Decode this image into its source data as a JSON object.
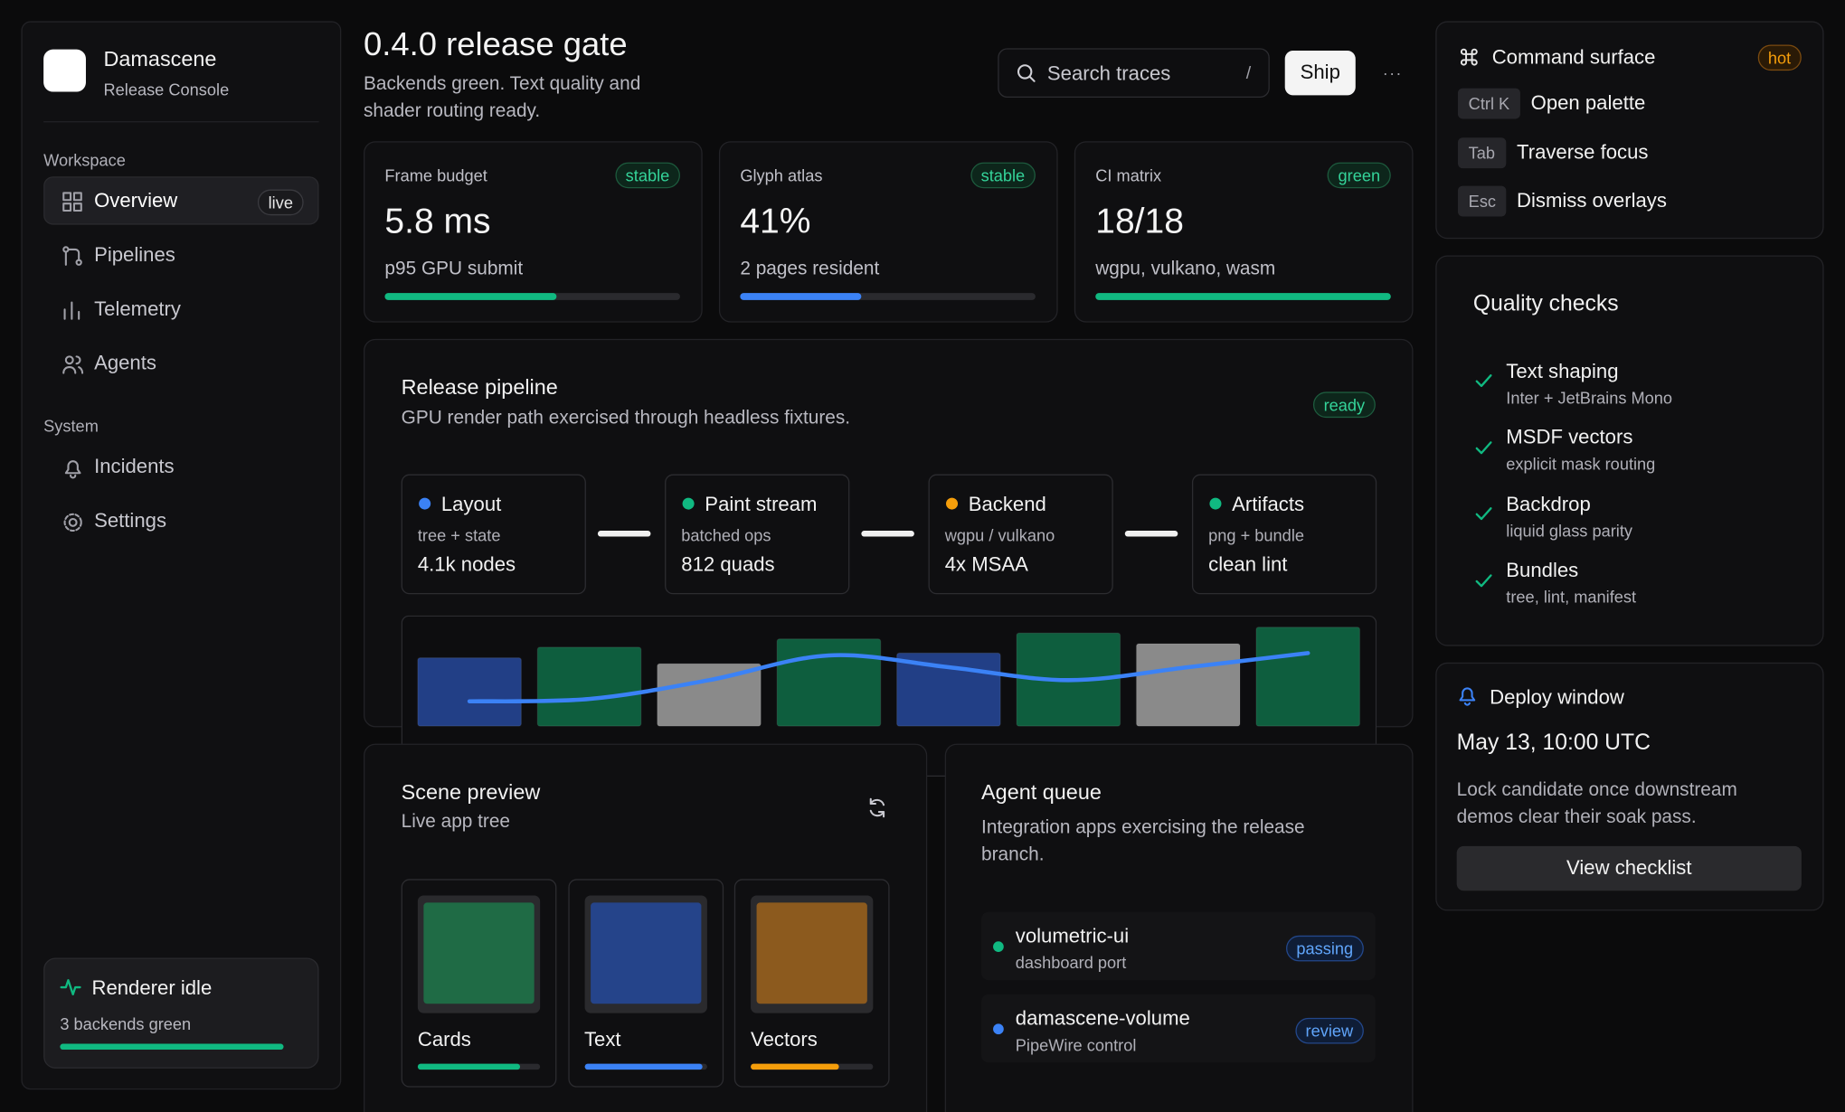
{
  "sidebar": {
    "brand": {
      "name": "Damascene",
      "subtitle": "Release Console"
    },
    "sections": [
      {
        "label": "Workspace",
        "items": [
          {
            "label": "Overview",
            "badge": "live"
          },
          {
            "label": "Pipelines"
          },
          {
            "label": "Telemetry"
          },
          {
            "label": "Agents"
          }
        ]
      },
      {
        "label": "System",
        "items": [
          {
            "label": "Incidents"
          },
          {
            "label": "Settings"
          }
        ]
      }
    ],
    "status": {
      "title": "Renderer idle",
      "subtitle": "3 backends green",
      "progress": 1
    }
  },
  "header": {
    "title": "0.4.0 release gate",
    "subtitle": "Backends green. Text quality and shader routing ready.",
    "search_placeholder": "Search traces",
    "search_shortcut": "/",
    "ship_button": "Ship",
    "more": "···"
  },
  "stats": [
    {
      "label": "Frame budget",
      "badge": "stable",
      "value": "5.8 ms",
      "detail": "p95 GPU submit",
      "progress": 0.58,
      "color": "#10b981"
    },
    {
      "label": "Glyph atlas",
      "badge": "stable",
      "value": "41%",
      "detail": "2 pages resident",
      "progress": 0.41,
      "color": "#3b82f6"
    },
    {
      "label": "CI matrix",
      "badge": "green",
      "value": "18/18",
      "detail": "wgpu, vulkano, wasm",
      "progress": 1,
      "color": "#10b981"
    }
  ],
  "pipeline": {
    "title": "Release pipeline",
    "subtitle": "GPU render path exercised through headless fixtures.",
    "badge": "ready",
    "stages": [
      {
        "name": "Layout",
        "detail": "tree + state",
        "metric": "4.1k nodes",
        "color": "#3b82f6"
      },
      {
        "name": "Paint stream",
        "detail": "batched ops",
        "metric": "812 quads",
        "color": "#10b981"
      },
      {
        "name": "Backend",
        "detail": "wgpu / vulkano",
        "metric": "4x MSAA",
        "color": "#f59e0b"
      },
      {
        "name": "Artifacts",
        "detail": "png + bundle",
        "metric": "clean lint",
        "color": "#10b981"
      }
    ],
    "chart": {
      "bars": [
        58,
        67,
        53,
        74,
        62,
        79,
        70,
        84
      ],
      "bar_colors": [
        "#223f86",
        "#0e5e3e",
        "#8a8a8a",
        "#0e5e3e",
        "#223f86",
        "#0e5e3e",
        "#8a8a8a",
        "#0e5e3e"
      ],
      "line": [
        21,
        23,
        39,
        60,
        50,
        39,
        50,
        62
      ],
      "line_color": "#3b82f6"
    }
  },
  "scene": {
    "title": "Scene preview",
    "subtitle": "Live app tree",
    "tiles": [
      {
        "label": "Cards",
        "color": "#1f6b45",
        "bar_color": "#10b981",
        "progress": 0.84
      },
      {
        "label": "Text",
        "color": "#25448a",
        "bar_color": "#3b82f6",
        "progress": 0.97
      },
      {
        "label": "Vectors",
        "color": "#8c5a1e",
        "bar_color": "#f59e0b",
        "progress": 0.72
      }
    ]
  },
  "agents": {
    "title": "Agent queue",
    "description": "Integration apps exercising the release branch.",
    "items": [
      {
        "name": "volumetric-ui",
        "detail": "dashboard port",
        "status": "passing",
        "color": "#10b981"
      },
      {
        "name": "damascene-volume",
        "detail": "PipeWire control",
        "status": "review",
        "color": "#3b82f6"
      }
    ]
  },
  "commands": {
    "title": "Command surface",
    "badge": "hot",
    "shortcuts": [
      {
        "key": "Ctrl K",
        "action": "Open palette"
      },
      {
        "key": "Tab",
        "action": "Traverse focus"
      },
      {
        "key": "Esc",
        "action": "Dismiss overlays"
      }
    ]
  },
  "quality": {
    "title": "Quality checks",
    "items": [
      {
        "name": "Text shaping",
        "detail": "Inter + JetBrains Mono"
      },
      {
        "name": "MSDF vectors",
        "detail": "explicit mask routing"
      },
      {
        "name": "Backdrop",
        "detail": "liquid glass parity"
      },
      {
        "name": "Bundles",
        "detail": "tree, lint, manifest"
      }
    ]
  },
  "deploy": {
    "title": "Deploy window",
    "date": "May 13, 10:00 UTC",
    "note": "Lock candidate once downstream demos clear their soak pass.",
    "button": "View checklist"
  }
}
